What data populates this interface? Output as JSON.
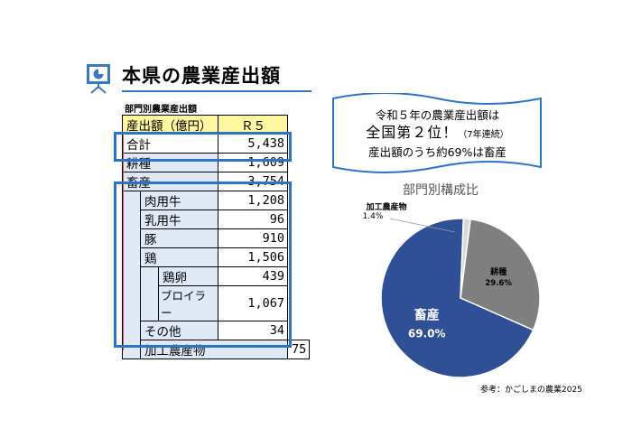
{
  "title": "本県の農業産出額",
  "table": {
    "caption": "部門別農業産出額",
    "header": {
      "label": "産出額（億円）",
      "value": "Ｒ５"
    },
    "rows": [
      {
        "label": "合計",
        "value": "5,438"
      },
      {
        "label": "耕種",
        "value": "1,609"
      },
      {
        "label": "畜産",
        "value": "3,754"
      },
      {
        "label": "肉用牛",
        "value": "1,208"
      },
      {
        "label": "乳用牛",
        "value": "96"
      },
      {
        "label": "豚",
        "value": "910"
      },
      {
        "label": "鶏",
        "value": "1,506"
      },
      {
        "label": "鶏卵",
        "value": "439"
      },
      {
        "label": "ブロイラー",
        "value": "1,067"
      },
      {
        "label": "その他",
        "value": "34"
      },
      {
        "label": "加工農産物",
        "value": "75"
      }
    ]
  },
  "banner": {
    "line1": "令和５年の農業産出額は",
    "line2_main": "全国第２位！",
    "line2_note": "（7年連続）",
    "line3": "産出額のうち約69%は畜産"
  },
  "chart_data": {
    "type": "pie",
    "title": "部門別構成比",
    "slices": [
      {
        "label": "畜産",
        "value": 69.0,
        "display": "69.0%",
        "color": "#2f4f96"
      },
      {
        "label": "加工農産物",
        "value": 1.4,
        "display": "1.4%",
        "color": "#d9d9d9"
      },
      {
        "label": "耕種",
        "value": 29.6,
        "display": "29.6%",
        "color": "#7f7f7f"
      }
    ]
  },
  "source": "参考：かごしまの農業2025",
  "colors": {
    "accent": "#2b74c7",
    "header_fill": "#fff7a0",
    "label_fill": "#dfe9f5"
  }
}
